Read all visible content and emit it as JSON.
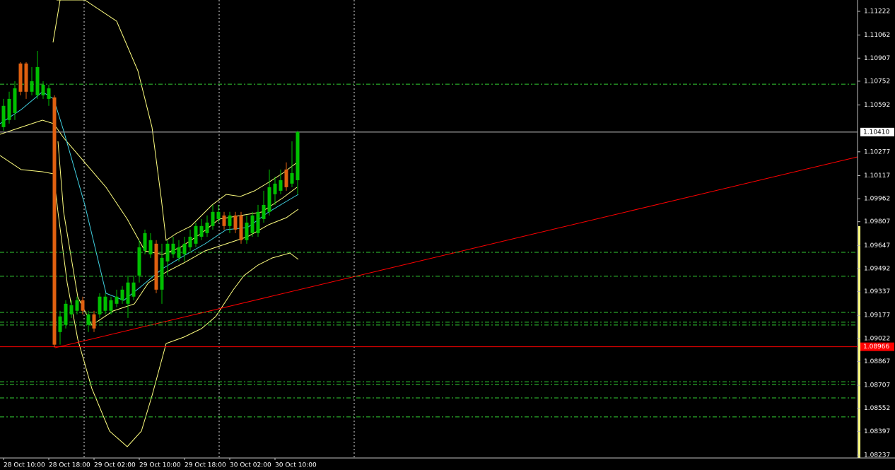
{
  "chart_data": {
    "type": "candlestick",
    "categories": [
      "28 Oct 10:00",
      null,
      null,
      null,
      null,
      null,
      null,
      null,
      "28 Oct 18:00",
      null,
      null,
      null,
      null,
      null,
      null,
      null,
      "29 Oct 02:00",
      null,
      null,
      null,
      null,
      null,
      null,
      null,
      "29 Oct 10:00",
      null,
      null,
      null,
      null,
      null,
      null,
      null,
      "29 Oct 18:00",
      null,
      null,
      null,
      null,
      null,
      null,
      null,
      "30 Oct 02:00",
      null,
      null,
      null,
      null,
      null,
      null,
      null,
      "30 Oct 10:00",
      null,
      null,
      null,
      null
    ],
    "ohlc": [
      [
        1.10443,
        1.10633,
        1.10419,
        1.10586
      ],
      [
        1.10491,
        1.10681,
        1.10467,
        1.10633
      ],
      [
        1.10538,
        1.10752,
        1.10491,
        1.10704
      ],
      [
        1.10871,
        1.1088,
        1.10657,
        1.10681
      ],
      [
        1.10871,
        1.1088,
        1.10633,
        1.10681
      ],
      [
        1.10681,
        1.10847,
        1.10657,
        1.10752
      ],
      [
        1.10657,
        1.10956,
        1.10633,
        1.10847
      ],
      [
        1.10657,
        1.10752,
        1.10633,
        1.10728
      ],
      [
        1.10633,
        1.10728,
        1.10586,
        1.10704
      ],
      [
        1.10643,
        1.10657,
        1.08961,
        1.0898
      ],
      [
        1.09065,
        1.09208,
        1.0898,
        1.0917
      ],
      [
        1.09113,
        1.09279,
        1.09089,
        1.09255
      ],
      [
        1.09184,
        1.09279,
        1.0916,
        1.09246
      ],
      [
        1.09208,
        1.09303,
        1.09184,
        1.09279
      ],
      [
        1.09279,
        1.09303,
        1.09184,
        1.09208
      ],
      [
        1.09113,
        1.09208,
        1.09065,
        1.09184
      ],
      [
        1.09184,
        1.09208,
        1.09065,
        1.09089
      ],
      [
        1.09184,
        1.09326,
        1.0916,
        1.09303
      ],
      [
        1.09208,
        1.09326,
        1.09184,
        1.09303
      ],
      [
        1.09208,
        1.09303,
        1.09184,
        1.09279
      ],
      [
        1.09255,
        1.0935,
        1.09232,
        1.09303
      ],
      [
        1.09279,
        1.09374,
        1.09255,
        1.0935
      ],
      [
        1.09255,
        1.09445,
        1.0916,
        1.09398
      ],
      [
        1.09303,
        1.09445,
        1.09279,
        1.09398
      ],
      [
        1.09445,
        1.09683,
        1.09398,
        1.09635
      ],
      [
        1.09612,
        1.09754,
        1.09588,
        1.0973
      ],
      [
        1.09588,
        1.0973,
        1.09564,
        1.09683
      ],
      [
        1.09659,
        1.09683,
        1.09326,
        1.0935
      ],
      [
        1.0935,
        1.09659,
        1.09255,
        1.09564
      ],
      [
        1.0954,
        1.09683,
        1.09445,
        1.09659
      ],
      [
        1.09588,
        1.09706,
        1.09564,
        1.09659
      ],
      [
        1.09564,
        1.09683,
        1.0954,
        1.09635
      ],
      [
        1.09588,
        1.09706,
        1.0954,
        1.09659
      ],
      [
        1.09635,
        1.09754,
        1.09612,
        1.09706
      ],
      [
        1.09659,
        1.09801,
        1.09635,
        1.09778
      ],
      [
        1.09706,
        1.09825,
        1.09683,
        1.09778
      ],
      [
        1.0973,
        1.09849,
        1.09706,
        1.09801
      ],
      [
        1.09778,
        1.0992,
        1.09754,
        1.09873
      ],
      [
        1.09825,
        1.0992,
        1.09801,
        1.09873
      ],
      [
        1.09849,
        1.09873,
        1.09754,
        1.09778
      ],
      [
        1.09778,
        1.09873,
        1.0973,
        1.09849
      ],
      [
        1.09849,
        1.09873,
        1.0973,
        1.09754
      ],
      [
        1.09849,
        1.09873,
        1.09659,
        1.09683
      ],
      [
        1.09683,
        1.09849,
        1.09659,
        1.09801
      ],
      [
        1.0973,
        1.09873,
        1.09706,
        1.09849
      ],
      [
        1.0973,
        1.0992,
        1.09706,
        1.09873
      ],
      [
        1.09825,
        1.10015,
        1.09801,
        1.0992
      ],
      [
        1.09873,
        1.10158,
        1.09849,
        1.10039
      ],
      [
        1.09992,
        1.1011,
        1.0992,
        1.10063
      ],
      [
        1.10015,
        1.10158,
        1.09992,
        1.10086
      ],
      [
        1.10158,
        1.10206,
        1.10015,
        1.10039
      ],
      [
        1.10063,
        1.10348,
        1.10039,
        1.10134
      ],
      [
        1.10086,
        1.10419,
        1.09992,
        1.1041
      ]
    ],
    "up_color": "#00c000",
    "down_color": "#e06010",
    "ylim": [
      1.08218,
      1.11298
    ],
    "yticks": [
      1.11222,
      1.11062,
      1.10907,
      1.10752,
      1.10592,
      1.10277,
      1.10117,
      1.09962,
      1.09807,
      1.09647,
      1.09492,
      1.09337,
      1.09177,
      1.09022,
      1.08867,
      1.08707,
      1.08552,
      1.08397,
      1.08237
    ],
    "levels": [
      1.10732,
      1.09601,
      1.0944,
      1.09197,
      1.09131,
      1.09112,
      1.08731,
      1.08712,
      1.08622,
      1.08494
    ],
    "level_color": "#33cc33",
    "bid": {
      "value": 1.1041,
      "label": "1.10410"
    },
    "line_price": 1.08966,
    "line_color": "#ff0000"
  }
}
